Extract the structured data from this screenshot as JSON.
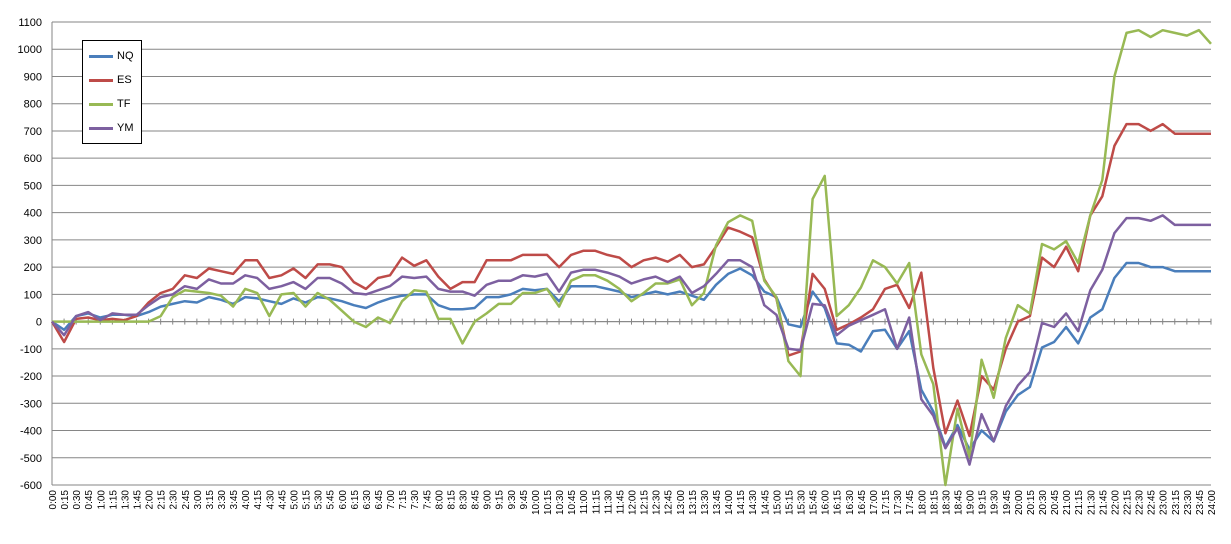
{
  "chart_data": {
    "type": "line",
    "title": "",
    "xlabel": "",
    "ylabel": "",
    "ylim": [
      -600,
      1100
    ],
    "yticks": [
      -600,
      -500,
      -400,
      -300,
      -200,
      -100,
      0,
      100,
      200,
      300,
      400,
      500,
      600,
      700,
      800,
      900,
      1000,
      1100
    ],
    "grid": true,
    "legend_position": "top-left",
    "x": [
      "0:00",
      "0:15",
      "0:30",
      "0:45",
      "1:00",
      "1:15",
      "1:30",
      "1:45",
      "2:00",
      "2:15",
      "2:30",
      "2:45",
      "3:00",
      "3:15",
      "3:30",
      "3:45",
      "4:00",
      "4:15",
      "4:30",
      "4:45",
      "5:00",
      "5:15",
      "5:30",
      "5:45",
      "6:00",
      "6:15",
      "6:30",
      "6:45",
      "7:00",
      "7:15",
      "7:30",
      "7:45",
      "8:00",
      "8:15",
      "8:30",
      "8:45",
      "9:00",
      "9:15",
      "9:30",
      "9:45",
      "10:00",
      "10:15",
      "10:30",
      "10:45",
      "11:00",
      "11:15",
      "11:30",
      "11:45",
      "12:00",
      "12:15",
      "12:30",
      "12:45",
      "13:00",
      "13:15",
      "13:30",
      "13:45",
      "14:00",
      "14:15",
      "14:30",
      "14:45",
      "15:00",
      "15:15",
      "15:30",
      "15:45",
      "16:00",
      "16:15",
      "16:30",
      "16:45",
      "17:00",
      "17:15",
      "17:30",
      "17:45",
      "18:00",
      "18:15",
      "18:30",
      "18:45",
      "19:00",
      "19:15",
      "19:30",
      "19:45",
      "20:00",
      "20:15",
      "20:30",
      "20:45",
      "21:00",
      "21:15",
      "21:30",
      "21:45",
      "22:00",
      "22:15",
      "22:30",
      "22:45",
      "23:00",
      "23:15",
      "23:30",
      "23:45",
      "24:00"
    ],
    "series": [
      {
        "name": "NQ",
        "color": "#4a7ebb",
        "values": [
          0,
          -30,
          20,
          30,
          15,
          25,
          25,
          20,
          35,
          55,
          65,
          75,
          70,
          90,
          80,
          65,
          90,
          85,
          75,
          65,
          85,
          70,
          90,
          85,
          75,
          60,
          50,
          70,
          85,
          95,
          100,
          100,
          60,
          45,
          45,
          50,
          90,
          90,
          100,
          120,
          115,
          120,
          75,
          130,
          130,
          130,
          120,
          110,
          90,
          100,
          110,
          100,
          110,
          95,
          80,
          135,
          175,
          195,
          170,
          110,
          90,
          -10,
          -20,
          110,
          50,
          -80,
          -85,
          -110,
          -35,
          -30,
          -100,
          -35,
          -250,
          -330,
          -460,
          -380,
          -470,
          -400,
          -440,
          -330,
          -270,
          -240,
          -95,
          -75,
          -20,
          -80,
          15,
          45,
          160,
          215,
          215,
          200,
          200,
          185,
          185,
          185,
          185
        ]
      },
      {
        "name": "ES",
        "color": "#be4b48",
        "values": [
          0,
          -75,
          10,
          15,
          5,
          10,
          5,
          20,
          70,
          105,
          120,
          170,
          160,
          195,
          185,
          175,
          225,
          225,
          160,
          170,
          195,
          160,
          210,
          210,
          200,
          145,
          120,
          160,
          170,
          235,
          205,
          225,
          165,
          120,
          145,
          145,
          225,
          225,
          225,
          245,
          245,
          245,
          200,
          245,
          260,
          260,
          245,
          235,
          200,
          225,
          235,
          220,
          245,
          200,
          210,
          275,
          345,
          330,
          310,
          155,
          85,
          -125,
          -110,
          175,
          120,
          -30,
          -10,
          15,
          45,
          120,
          135,
          50,
          180,
          -170,
          -410,
          -290,
          -420,
          -200,
          -250,
          -100,
          0,
          20,
          235,
          200,
          275,
          185,
          390,
          460,
          645,
          725,
          725,
          700,
          725,
          690,
          690,
          690,
          690
        ]
      },
      {
        "name": "TF",
        "color": "#98b954",
        "values": [
          0,
          0,
          0,
          0,
          0,
          0,
          0,
          0,
          0,
          20,
          90,
          115,
          110,
          105,
          95,
          55,
          120,
          105,
          20,
          100,
          105,
          55,
          105,
          80,
          40,
          0,
          -20,
          15,
          -5,
          75,
          115,
          110,
          10,
          10,
          -80,
          0,
          30,
          65,
          65,
          105,
          105,
          120,
          55,
          150,
          170,
          170,
          150,
          120,
          75,
          105,
          140,
          140,
          155,
          60,
          105,
          280,
          365,
          390,
          370,
          150,
          90,
          -145,
          -200,
          450,
          535,
          20,
          60,
          125,
          225,
          200,
          140,
          215,
          -120,
          -230,
          -600,
          -320,
          -500,
          -140,
          -280,
          -60,
          60,
          30,
          285,
          265,
          295,
          215,
          390,
          520,
          900,
          1060,
          1070,
          1045,
          1070,
          1060,
          1050,
          1070,
          1020
        ]
      },
      {
        "name": "YM",
        "color": "#7d60a0",
        "values": [
          0,
          -50,
          20,
          35,
          5,
          30,
          25,
          25,
          60,
          90,
          100,
          130,
          120,
          155,
          140,
          140,
          170,
          160,
          120,
          130,
          145,
          120,
          160,
          160,
          140,
          105,
          100,
          115,
          130,
          165,
          160,
          165,
          120,
          110,
          110,
          95,
          135,
          150,
          150,
          170,
          165,
          175,
          110,
          180,
          190,
          190,
          180,
          165,
          140,
          155,
          165,
          145,
          165,
          105,
          130,
          175,
          225,
          225,
          200,
          60,
          25,
          -100,
          -105,
          65,
          60,
          -50,
          -15,
          5,
          25,
          45,
          -100,
          15,
          -285,
          -345,
          -465,
          -390,
          -525,
          -340,
          -440,
          -310,
          -235,
          -185,
          -5,
          -20,
          30,
          -35,
          115,
          190,
          325,
          380,
          380,
          370,
          390,
          355,
          355,
          355,
          355
        ]
      }
    ]
  }
}
